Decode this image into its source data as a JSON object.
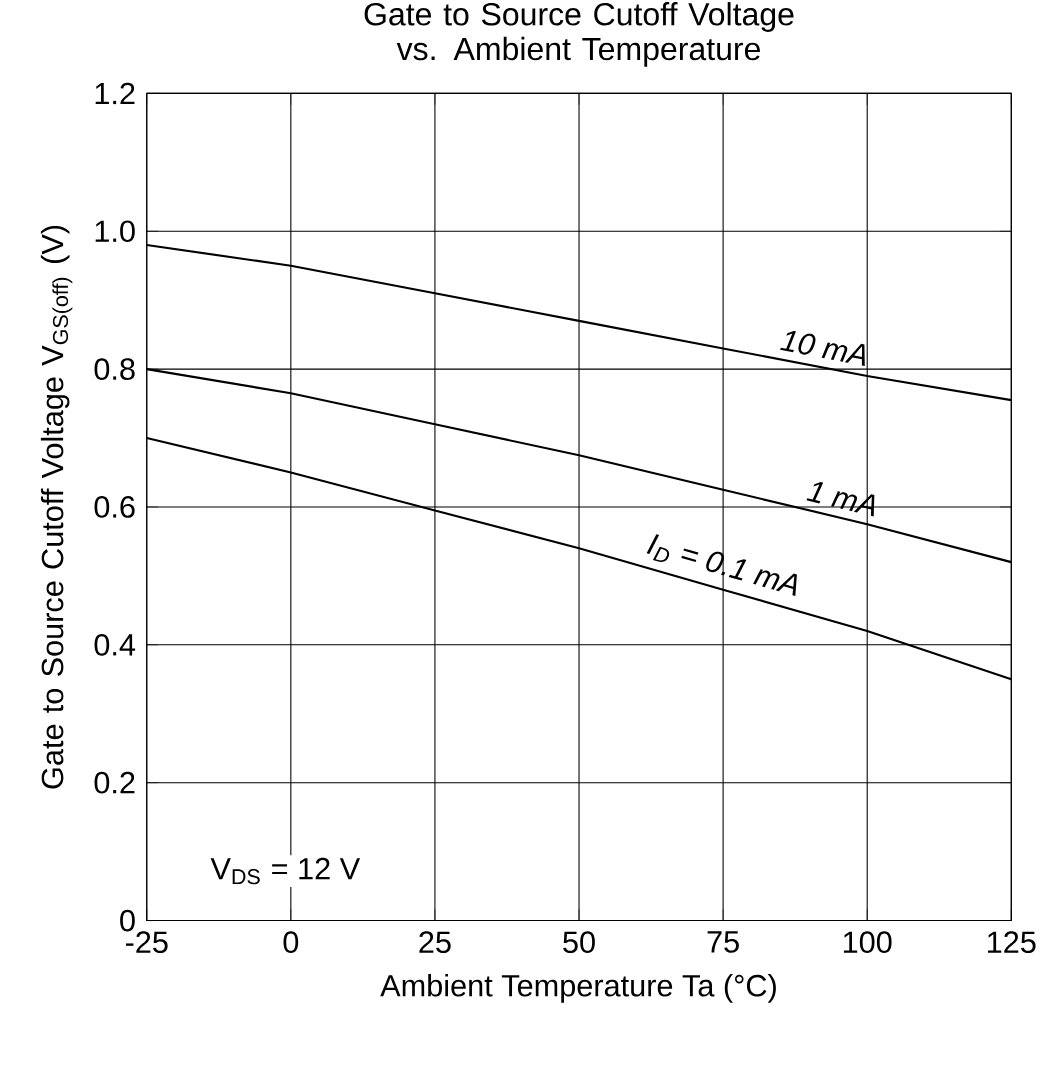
{
  "chart_data": {
    "type": "line",
    "title": "Gate to Source Cutoff Voltage vs. Ambient Temperature",
    "xlabel": "Ambient Temperature   Ta  (°C)",
    "ylabel": "Gate to Source Cutoff Voltage V$_{GS(off)}$ (V)",
    "x": [
      -25,
      0,
      25,
      50,
      75,
      100,
      125
    ],
    "series": [
      {
        "name": "10 mA",
        "color": "#000000",
        "values": [
          0.98,
          0.95,
          0.91,
          0.87,
          0.83,
          0.79,
          0.755
        ]
      },
      {
        "name": "1 mA",
        "color": "#000000",
        "values": [
          0.8,
          0.765,
          0.72,
          0.675,
          0.625,
          0.575,
          0.52
        ]
      },
      {
        "name": "I$_{D}$ = 0.1 mA",
        "color": "#000000",
        "values": [
          0.7,
          0.65,
          0.595,
          0.54,
          0.48,
          0.42,
          0.35
        ]
      }
    ],
    "annotations": [
      "V$_{DS}$ = 12 V"
    ],
    "xlim": [
      -25,
      125
    ],
    "ylim": [
      0,
      1.2
    ],
    "xticks": [
      -25,
      0,
      25,
      50,
      75,
      100,
      125
    ],
    "yticks": [
      0,
      0.2,
      0.4,
      0.6,
      0.8,
      {
        "value": 1,
        "label": "1.0"
      },
      {
        "value": 1.2,
        "label": "1.2"
      }
    ],
    "grid": true,
    "marker": "none",
    "line_style": "solid"
  }
}
